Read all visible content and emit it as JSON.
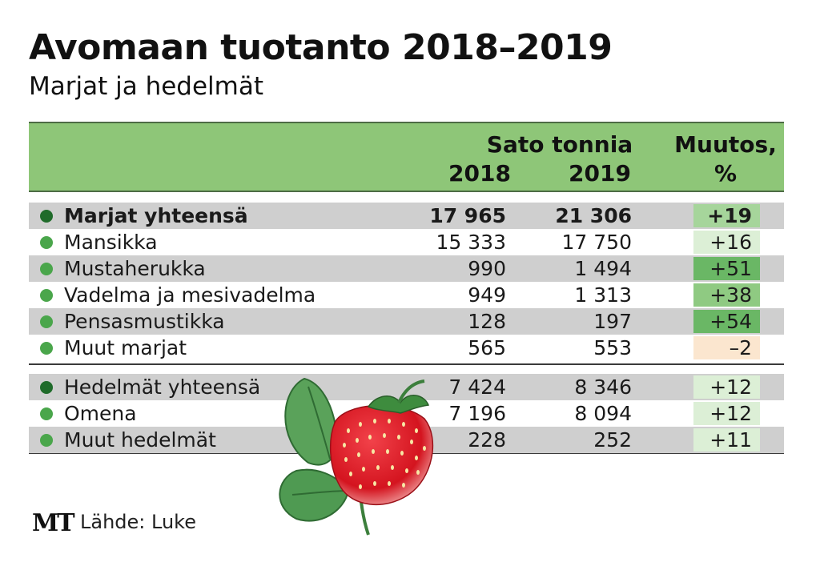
{
  "title": "Avomaan tuotanto 2018–2019",
  "subtitle": "Marjat ja hedelmät",
  "table": {
    "group_header": "Sato tonnia",
    "year1": "2018",
    "year2": "2019",
    "change_header_line1": "Muutos,",
    "change_header_line2": "%",
    "rows": [
      {
        "label": "Marjat yhteensä",
        "v2018": "17 965",
        "v2019": "21 306",
        "change": "+19"
      },
      {
        "label": "Mansikka",
        "v2018": "15 333",
        "v2019": "17 750",
        "change": "+16"
      },
      {
        "label": "Mustaherukka",
        "v2018": "990",
        "v2019": "1 494",
        "change": "+51"
      },
      {
        "label": "Vadelma ja mesivadelma",
        "v2018": "949",
        "v2019": "1 313",
        "change": "+38"
      },
      {
        "label": "Pensasmustikka",
        "v2018": "128",
        "v2019": "197",
        "change": "+54"
      },
      {
        "label": "Muut marjat",
        "v2018": "565",
        "v2019": "553",
        "change": "–2"
      },
      {
        "label": "Hedelmät yhteensä",
        "v2018": "7 424",
        "v2019": "8 346",
        "change": "+12"
      },
      {
        "label": "Omena",
        "v2018": "7 196",
        "v2019": "8 094",
        "change": "+12"
      },
      {
        "label": "Muut hedelmät",
        "v2018": "228",
        "v2019": "252",
        "change": "+11"
      }
    ]
  },
  "colors": {
    "header_bg": "#8ec678",
    "row_shade": "#cfcfcf",
    "total_dot": "#1f6b2a",
    "item_dot": "#4aa64b",
    "change_high": "#6ab765",
    "change_mid": "#a6d59b",
    "change_low": "#dcefd6",
    "change_negative": "#fbe6cf"
  },
  "footer": {
    "logo": "MT",
    "source": "Lähde: Luke"
  },
  "illustration": "strawberry-icon"
}
